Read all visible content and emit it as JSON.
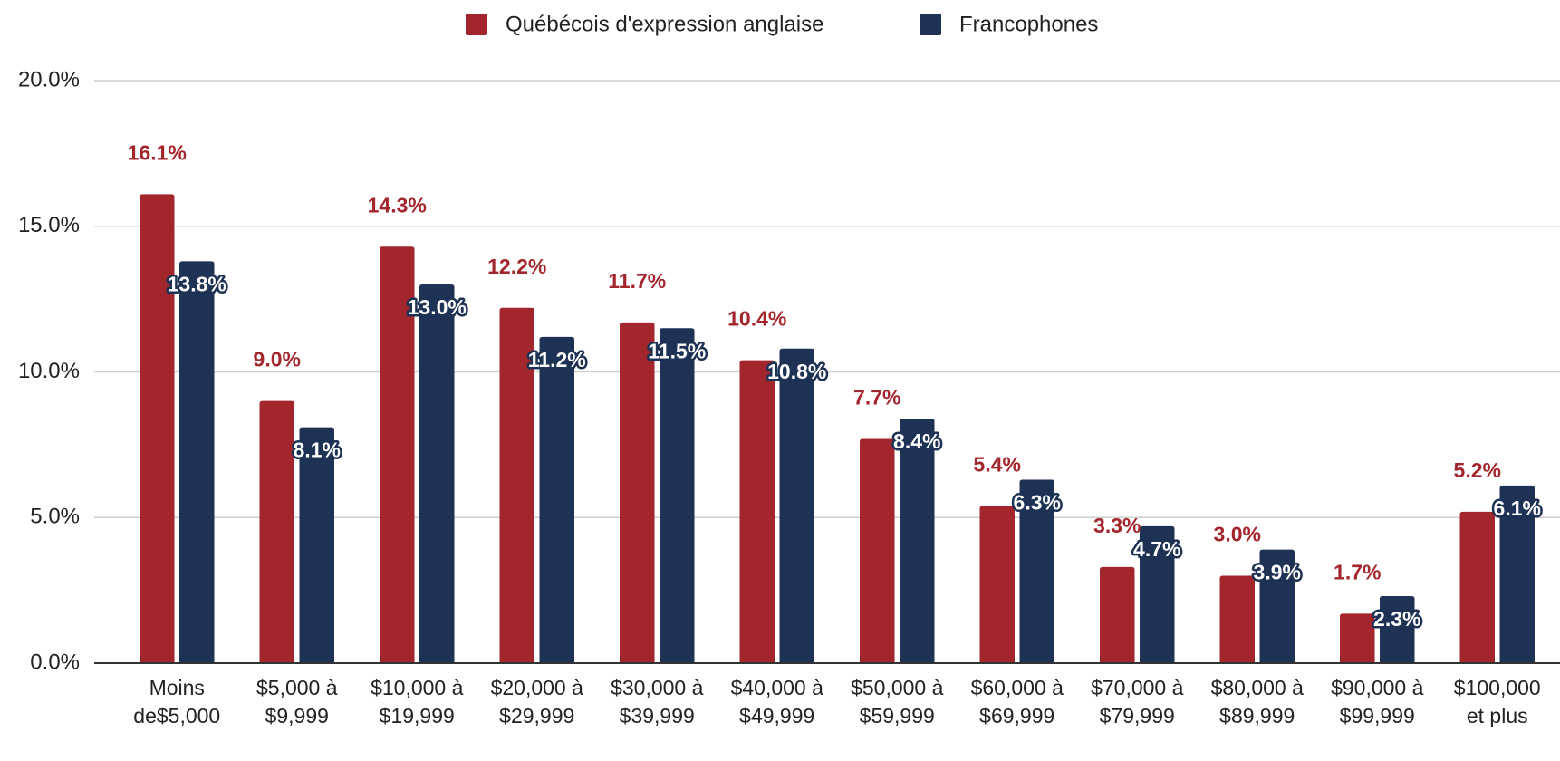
{
  "chart_data": {
    "type": "bar",
    "categories": [
      "Moins de$5,000",
      "$5,000 à $9,999",
      "$10,000 à $19,999",
      "$20,000 à $29,999",
      "$30,000 à $39,999",
      "$40,000 à $49,999",
      "$50,000 à $59,999",
      "$60,000 à $69,999",
      "$70,000 à $79,999",
      "$80,000 à $89,999",
      "$90,000 à $99,999",
      "$100,000 et plus"
    ],
    "series": [
      {
        "name": "Québécois d'expression anglaise",
        "color": "#a3262d",
        "values": [
          16.1,
          9.0,
          14.3,
          12.2,
          11.7,
          10.4,
          7.7,
          5.4,
          3.3,
          3.0,
          1.7,
          5.2
        ],
        "value_labels": [
          "16.1%",
          "9.0%",
          "14.3%",
          "12.2%",
          "11.7%",
          "10.4%",
          "7.7%",
          "5.4%",
          "3.3%",
          "3.0%",
          "1.7%",
          "5.2%"
        ]
      },
      {
        "name": "Francophones",
        "color": "#1d3254",
        "values": [
          13.8,
          8.1,
          13.0,
          11.2,
          11.5,
          10.8,
          8.4,
          6.3,
          4.7,
          3.9,
          2.3,
          6.1
        ],
        "value_labels": [
          "13.8%",
          "8.1%",
          "13.0%",
          "11.2%",
          "11.5%",
          "10.8%",
          "8.4%",
          "6.3%",
          "4.7%",
          "3.9%",
          "2.3%",
          "6.1%"
        ]
      }
    ],
    "ylim": [
      0,
      20
    ],
    "yticks": [
      {
        "value": 0,
        "label": "0.0%"
      },
      {
        "value": 5,
        "label": "5.0%"
      },
      {
        "value": 10,
        "label": "10.0%"
      },
      {
        "value": 15,
        "label": "15.0%"
      },
      {
        "value": 20,
        "label": "20.0%"
      }
    ],
    "grid": true,
    "legend": "top"
  }
}
